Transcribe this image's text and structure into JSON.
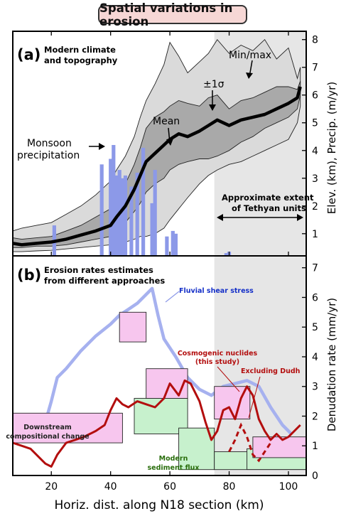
{
  "title": "Spatial variations in erosion",
  "x_axis": {
    "label": "Horiz. dist. along N18 section (km)",
    "ticks": [
      20,
      40,
      60,
      80,
      100
    ],
    "range": [
      7,
      106
    ]
  },
  "tethyan_shade_start_km": 75,
  "panel_a": {
    "label": "(a)",
    "subtitle_line1": "Modern climate",
    "subtitle_line2": "and topography",
    "y_label": "Elev. (km), Precip. (m/yr)",
    "y_ticks": [
      1,
      2,
      3,
      4,
      5,
      6,
      7,
      8
    ],
    "y_range": [
      0.2,
      8.3
    ],
    "annotations": {
      "minmax": "Min/max",
      "sigma": "±1σ",
      "mean": "Mean",
      "monsoon_line1": "Monsoon",
      "monsoon_line2": "precipitation",
      "tethyan_line1": "Approximate extent",
      "tethyan_line2": "of Tethyan units"
    }
  },
  "panel_b": {
    "label": "(b)",
    "subtitle_line1": "Erosion rates estimates",
    "subtitle_line2": "from different approaches",
    "y_label": "Denudation rate (mm/yr)",
    "y_ticks": [
      0,
      1,
      2,
      3,
      4,
      5,
      6,
      7
    ],
    "y_range": [
      0,
      7.4
    ],
    "annotations": {
      "fluvial": "Fluvial shear stress",
      "cosmo_line1": "Cosmogenic nuclides",
      "cosmo_line2": "(this study)",
      "dudh": "Excluding Dudh",
      "downstream_line1": "Downstream",
      "downstream_line2": "compositional change",
      "modern_line1": "Modern",
      "modern_line2": "sediment flux"
    }
  },
  "colors": {
    "band_minmax": "#dadada",
    "band_sigma": "#a9a9a9",
    "mean": "#000000",
    "precip": "#8c99e8",
    "tethyan": "#e6e6e6",
    "fluvial": "#a6b1ef",
    "cosmo": "#b30e0e",
    "pink_box": "#f7c6ee",
    "green_box": "#c7f1cd",
    "modern_text": "#2a6e0c",
    "fluvial_text": "#1530c8",
    "cosmo_text": "#b30e0e"
  },
  "chart_data": [
    {
      "type": "area",
      "title": "Modern climate and topography",
      "xlabel": "Horiz. dist. along N18 section (km)",
      "ylabel": "Elev. (km), Precip. (m/yr)",
      "xlim": [
        7,
        106
      ],
      "ylim": [
        0.2,
        8.3
      ],
      "elevation": {
        "x": [
          7,
          10,
          15,
          20,
          25,
          30,
          35,
          40,
          42,
          45,
          48,
          50,
          52,
          55,
          58,
          60,
          63,
          66,
          70,
          73,
          76,
          80,
          84,
          88,
          92,
          96,
          100,
          103,
          104
        ],
        "min": [
          0.35,
          0.35,
          0.38,
          0.4,
          0.45,
          0.5,
          0.55,
          0.6,
          0.65,
          0.7,
          0.8,
          0.9,
          0.9,
          1.0,
          1.2,
          1.5,
          1.9,
          2.3,
          2.8,
          3.1,
          3.3,
          3.5,
          3.6,
          3.8,
          4.0,
          4.2,
          4.4,
          5.0,
          5.6
        ],
        "sigma_low": [
          0.5,
          0.5,
          0.55,
          0.55,
          0.6,
          0.7,
          0.8,
          0.9,
          1.1,
          1.4,
          1.8,
          2.1,
          2.5,
          2.8,
          3.0,
          3.3,
          3.5,
          3.6,
          3.7,
          3.7,
          3.8,
          4.0,
          4.3,
          4.5,
          4.8,
          5.0,
          5.2,
          5.5,
          6.0
        ],
        "mean": [
          0.65,
          0.6,
          0.65,
          0.7,
          0.8,
          0.95,
          1.1,
          1.3,
          1.6,
          2.0,
          2.6,
          3.1,
          3.6,
          3.9,
          4.2,
          4.4,
          4.6,
          4.5,
          4.7,
          4.9,
          5.1,
          4.9,
          5.1,
          5.2,
          5.3,
          5.5,
          5.7,
          5.9,
          6.3
        ],
        "sigma_high": [
          0.85,
          0.8,
          0.85,
          0.9,
          1.1,
          1.3,
          1.6,
          1.9,
          2.3,
          2.8,
          3.5,
          4.1,
          4.8,
          5.2,
          5.4,
          5.6,
          5.8,
          5.7,
          5.6,
          5.9,
          6.0,
          5.5,
          5.8,
          5.9,
          6.1,
          6.3,
          6.3,
          6.2,
          6.5
        ],
        "max": [
          1.1,
          1.2,
          1.3,
          1.4,
          1.7,
          2.0,
          2.4,
          2.9,
          3.3,
          3.8,
          4.5,
          5.2,
          5.8,
          6.4,
          7.1,
          7.9,
          7.4,
          6.8,
          7.2,
          7.5,
          8.0,
          7.5,
          7.8,
          7.6,
          8.0,
          7.3,
          7.7,
          6.6,
          7.0
        ]
      },
      "precipitation": {
        "x": [
          21,
          37,
          40,
          41,
          42,
          43,
          44,
          45,
          47,
          49,
          51,
          54,
          55,
          59,
          61,
          62,
          79,
          80
        ],
        "values": [
          1.3,
          3.5,
          3.7,
          4.2,
          3.1,
          3.3,
          3.0,
          3.1,
          2.7,
          3.2,
          4.1,
          2.1,
          3.3,
          0.9,
          1.1,
          1.0,
          0.3,
          0.35
        ]
      }
    },
    {
      "type": "line",
      "title": "Erosion rates estimates from different approaches",
      "xlabel": "Horiz. dist. along N18 section (km)",
      "ylabel": "Denudation rate (mm/yr)",
      "xlim": [
        7,
        106
      ],
      "ylim": [
        0,
        7.4
      ],
      "series": [
        {
          "name": "Fluvial shear stress",
          "x": [
            10,
            15,
            18,
            20,
            22,
            25,
            30,
            35,
            40,
            43,
            46,
            49,
            52,
            54,
            56,
            58,
            62,
            66,
            70,
            74,
            78,
            82,
            86,
            90,
            94,
            98,
            101
          ],
          "values": [
            1.2,
            1.3,
            1.8,
            2.5,
            3.3,
            3.6,
            4.2,
            4.7,
            5.1,
            5.4,
            5.6,
            5.8,
            6.1,
            6.3,
            5.4,
            4.6,
            4.0,
            3.3,
            2.9,
            2.7,
            3.0,
            3.1,
            3.2,
            3.0,
            2.3,
            1.7,
            1.4
          ]
        },
        {
          "name": "Cosmogenic nuclides (this study)",
          "x": [
            7,
            10,
            13,
            16,
            18,
            20,
            22,
            25,
            28,
            31,
            33,
            35,
            38,
            40,
            42,
            44,
            46,
            49,
            52,
            55,
            58,
            60,
            63,
            65,
            67,
            70,
            72,
            74,
            76,
            78,
            80,
            82,
            84,
            86,
            88,
            90,
            92,
            94,
            96,
            98,
            100,
            102,
            104
          ],
          "values": [
            1.1,
            1.0,
            0.9,
            0.6,
            0.4,
            0.3,
            0.7,
            1.1,
            1.2,
            1.3,
            1.4,
            1.5,
            1.7,
            2.2,
            2.6,
            2.4,
            2.3,
            2.5,
            2.4,
            2.3,
            2.6,
            3.1,
            2.7,
            3.2,
            3.1,
            2.5,
            1.8,
            1.2,
            1.5,
            2.2,
            2.3,
            1.9,
            2.6,
            3.0,
            2.7,
            1.9,
            1.5,
            1.2,
            1.4,
            1.2,
            1.3,
            1.5,
            1.7
          ]
        },
        {
          "name": "Excluding Dudh",
          "x": [
            80,
            82,
            84,
            86,
            88,
            90,
            92,
            94
          ],
          "values": [
            0.8,
            1.2,
            1.7,
            1.3,
            0.7,
            0.5,
            0.8,
            1.1
          ]
        }
      ],
      "boxes": [
        {
          "label": "Downstream compositional change",
          "kind": "pink",
          "x": [
            5,
            44
          ],
          "y": [
            1.1,
            2.1
          ]
        },
        {
          "label": "",
          "kind": "pink",
          "x": [
            43,
            52
          ],
          "y": [
            4.5,
            5.5
          ]
        },
        {
          "label": "",
          "kind": "green",
          "x": [
            48,
            66
          ],
          "y": [
            1.4,
            2.6
          ]
        },
        {
          "label": "",
          "kind": "pink",
          "x": [
            52,
            66
          ],
          "y": [
            2.6,
            3.6
          ]
        },
        {
          "label": "Modern sediment flux",
          "kind": "green",
          "x": [
            63,
            75
          ],
          "y": [
            0.2,
            1.6
          ]
        },
        {
          "label": "",
          "kind": "pink",
          "x": [
            75,
            87
          ],
          "y": [
            1.9,
            3.0
          ]
        },
        {
          "label": "",
          "kind": "green",
          "x": [
            75,
            106
          ],
          "y": [
            0.2,
            0.8
          ]
        },
        {
          "label": "",
          "kind": "green",
          "x": [
            86,
            106
          ],
          "y": [
            0.2,
            0.9
          ]
        },
        {
          "label": "",
          "kind": "pink",
          "x": [
            88,
            106
          ],
          "y": [
            0.6,
            1.3
          ]
        }
      ]
    }
  ]
}
